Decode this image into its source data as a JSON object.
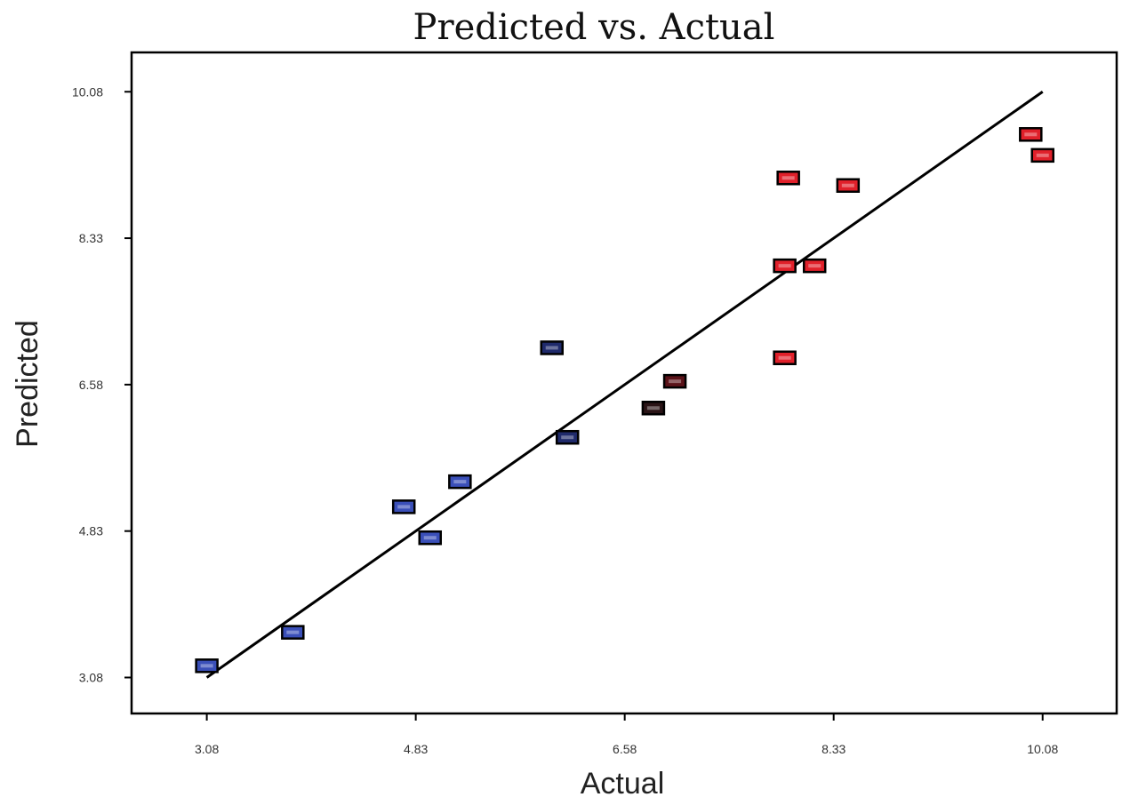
{
  "chart_data": {
    "type": "scatter",
    "title": "Predicted vs. Actual",
    "xlabel": "Actual",
    "ylabel": "Predicted",
    "xlim": [
      2.45,
      10.7
    ],
    "ylim": [
      2.65,
      10.55
    ],
    "x_ticks": [
      "3.08",
      "4.83",
      "6.58",
      "8.33",
      "10.08"
    ],
    "y_ticks": [
      "3.08",
      "4.83",
      "6.58",
      "8.33",
      "10.08"
    ],
    "grid": false,
    "reference_line": {
      "from": [
        3.08,
        3.08
      ],
      "to": [
        10.08,
        10.08
      ]
    },
    "colors": {
      "low": "#3a4fb8",
      "mid_low": "#1f2a6b",
      "mid": "#2a1416",
      "mid_high": "#5a1218",
      "high": "#e0202a",
      "line": "#000000",
      "frame": "#000000"
    },
    "points": [
      {
        "x": 3.08,
        "y": 3.22,
        "level": "low"
      },
      {
        "x": 3.8,
        "y": 3.62,
        "level": "low"
      },
      {
        "x": 4.73,
        "y": 5.12,
        "level": "low"
      },
      {
        "x": 4.95,
        "y": 4.75,
        "level": "low"
      },
      {
        "x": 5.2,
        "y": 5.42,
        "level": "low"
      },
      {
        "x": 5.97,
        "y": 7.02,
        "level": "mid_low"
      },
      {
        "x": 6.1,
        "y": 5.95,
        "level": "mid_low"
      },
      {
        "x": 6.82,
        "y": 6.3,
        "level": "mid"
      },
      {
        "x": 7.0,
        "y": 6.62,
        "level": "mid_high"
      },
      {
        "x": 7.92,
        "y": 6.9,
        "level": "high"
      },
      {
        "x": 7.92,
        "y": 8.0,
        "level": "high"
      },
      {
        "x": 8.17,
        "y": 8.0,
        "level": "high"
      },
      {
        "x": 7.95,
        "y": 9.05,
        "level": "high"
      },
      {
        "x": 8.45,
        "y": 8.96,
        "level": "high"
      },
      {
        "x": 9.98,
        "y": 9.57,
        "level": "high"
      },
      {
        "x": 10.08,
        "y": 9.32,
        "level": "high"
      }
    ]
  }
}
